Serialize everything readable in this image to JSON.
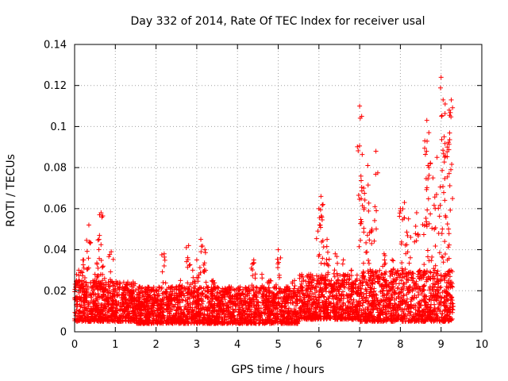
{
  "chart_data": {
    "type": "scatter",
    "title": "Day 332 of 2014, Rate Of TEC Index for receiver usal",
    "xlabel": "GPS time / hours",
    "ylabel": "ROTI / TECUs",
    "xlim": [
      0,
      10
    ],
    "ylim": [
      0,
      0.14
    ],
    "xticks": [
      0,
      1,
      2,
      3,
      4,
      5,
      6,
      7,
      8,
      9,
      10
    ],
    "xtick_labels": [
      "0",
      "1",
      "2",
      "3",
      "4",
      "5",
      "6",
      "7",
      "8",
      "9",
      "10"
    ],
    "yticks": [
      0,
      0.02,
      0.04,
      0.06,
      0.08,
      0.1,
      0.12,
      0.14
    ],
    "ytick_labels": [
      "0",
      "0.02",
      "0.04",
      "0.06",
      "0.08",
      "0.1",
      "0.12",
      "0.14"
    ],
    "grid": true,
    "marker": "+",
    "marker_color": "#ff0000",
    "series": [
      {
        "name": "ROTI",
        "sample_x": [
          0.05,
          0.1,
          0.2,
          0.3,
          0.35,
          0.5,
          0.6,
          0.65,
          0.7,
          0.8,
          0.9,
          1.0,
          1.2,
          1.4,
          1.6,
          1.8,
          2.0,
          2.2,
          2.4,
          2.6,
          2.8,
          2.9,
          3.0,
          3.1,
          3.2,
          3.4,
          3.6,
          3.8,
          4.0,
          4.2,
          4.4,
          4.6,
          4.8,
          5.0,
          5.2,
          5.4,
          5.6,
          5.8,
          6.0,
          6.05,
          6.1,
          6.2,
          6.4,
          6.6,
          6.8,
          7.0,
          7.05,
          7.1,
          7.2,
          7.3,
          7.4,
          7.6,
          7.8,
          8.0,
          8.1,
          8.2,
          8.4,
          8.6,
          8.65,
          8.7,
          8.8,
          8.9,
          9.0,
          9.05,
          9.1,
          9.15,
          9.2,
          9.25
        ],
        "sample_y": [
          0.025,
          0.03,
          0.035,
          0.02,
          0.052,
          0.028,
          0.045,
          0.058,
          0.032,
          0.02,
          0.039,
          0.015,
          0.018,
          0.02,
          0.015,
          0.018,
          0.02,
          0.038,
          0.022,
          0.025,
          0.042,
          0.03,
          0.035,
          0.045,
          0.04,
          0.025,
          0.02,
          0.022,
          0.018,
          0.02,
          0.035,
          0.028,
          0.025,
          0.04,
          0.022,
          0.025,
          0.02,
          0.028,
          0.06,
          0.066,
          0.062,
          0.045,
          0.038,
          0.035,
          0.03,
          0.11,
          0.105,
          0.07,
          0.081,
          0.05,
          0.088,
          0.038,
          0.035,
          0.06,
          0.063,
          0.055,
          0.058,
          0.093,
          0.103,
          0.097,
          0.075,
          0.085,
          0.124,
          0.113,
          0.111,
          0.09,
          0.108,
          0.113
        ],
        "baseline": {
          "segments": [
            {
              "x_start": 0.0,
              "x_end": 1.5,
              "y_min": 0.005,
              "y_max": 0.025
            },
            {
              "x_start": 1.5,
              "x_end": 5.5,
              "y_min": 0.004,
              "y_max": 0.022
            },
            {
              "x_start": 5.5,
              "x_end": 7.0,
              "y_min": 0.006,
              "y_max": 0.028
            },
            {
              "x_start": 7.0,
              "x_end": 9.3,
              "y_min": 0.005,
              "y_max": 0.03
            }
          ]
        }
      }
    ]
  }
}
